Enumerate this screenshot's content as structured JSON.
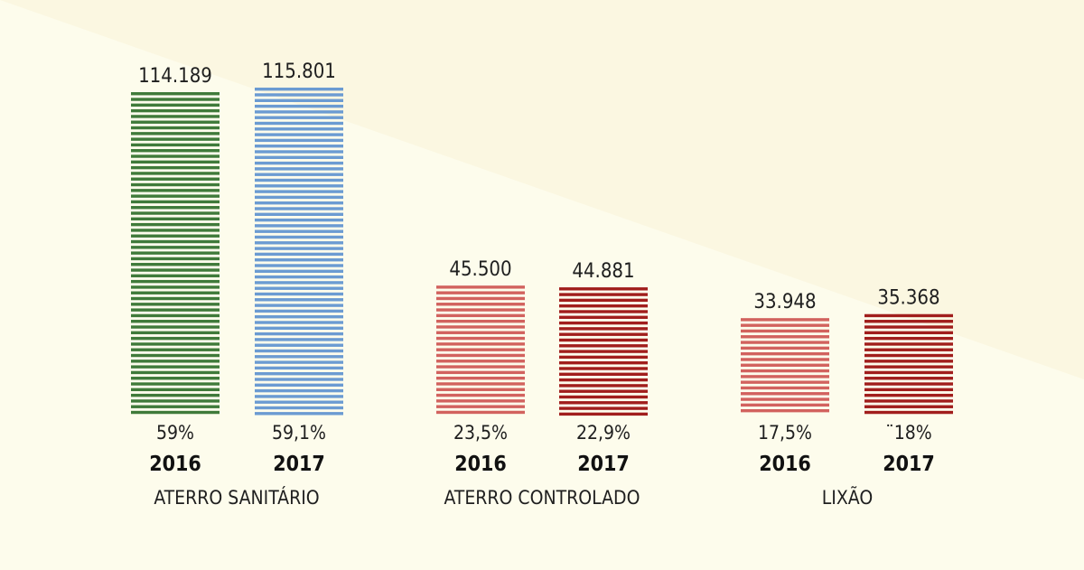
{
  "chart_data": {
    "type": "bar",
    "title": "",
    "xlabel": "",
    "ylabel": "",
    "ylim": [
      0,
      130000
    ],
    "grid": false,
    "legend": "none",
    "groups": [
      {
        "label": "ATERRO SANITÁRIO",
        "bars": [
          {
            "year": "2016",
            "value": 114189,
            "value_label": "114.189",
            "percent": "59%",
            "color": "#3f7a3a"
          },
          {
            "year": "2017",
            "value": 115801,
            "value_label": "115.801",
            "percent": "59,1%",
            "color": "#6b9bd2"
          }
        ]
      },
      {
        "label": "ATERRO CONTROLADO",
        "bars": [
          {
            "year": "2016",
            "value": 45500,
            "value_label": "45.500",
            "percent": "23,5%",
            "color": "#d2625e"
          },
          {
            "year": "2017",
            "value": 44881,
            "value_label": "44.881",
            "percent": "22,9%",
            "color": "#a11e1c"
          }
        ]
      },
      {
        "label": "LIXÃO",
        "bars": [
          {
            "year": "2016",
            "value": 33948,
            "value_label": "33.948",
            "percent": "17,5%",
            "color": "#d2625e"
          },
          {
            "year": "2017",
            "value": 35368,
            "value_label": "35.368",
            "percent": "¨18%",
            "color": "#a11e1c"
          }
        ]
      }
    ]
  },
  "colors": {
    "background": "#fdfcec",
    "background_shade": "#fbf7e1"
  }
}
